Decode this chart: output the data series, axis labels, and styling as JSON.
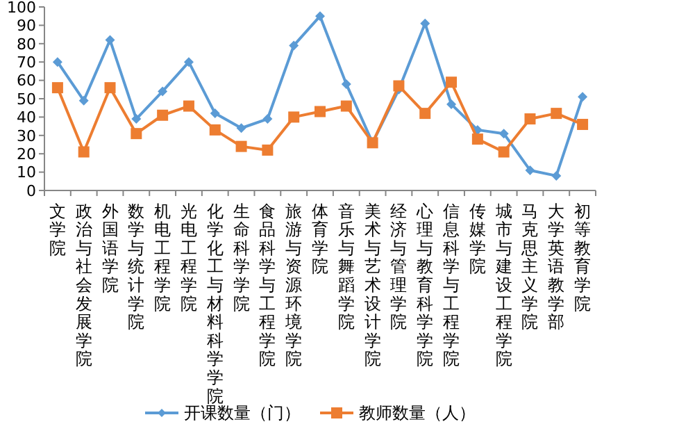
{
  "chart_data": {
    "type": "line",
    "categories": [
      "文学院",
      "政治与社会发展学院",
      "外国语学院",
      "数学与统计学院",
      "机电工程学院",
      "光电工程学院",
      "化学化工与材料科学学院",
      "生命科学学院",
      "食品科学与工程学院",
      "旅游与资源环境学院",
      "体育学院",
      "音乐与舞蹈学院",
      "美术与艺术设计学院",
      "经济与管理学院",
      "心理与教育科学学院",
      "信息科学与工程学院",
      "传媒学院",
      "城市与建设工程学院",
      "马克思主义学院",
      "大学英语教学部",
      "初等教育学院"
    ],
    "series": [
      {
        "name": "开课数量（门）",
        "color": "#5b9bd5",
        "marker": "diamond",
        "values": [
          70,
          49,
          82,
          39,
          54,
          70,
          42,
          34,
          39,
          79,
          95,
          58,
          26,
          55,
          91,
          47,
          33,
          31,
          11,
          8,
          51
        ]
      },
      {
        "name": "教师数量（人）",
        "color": "#ed7d31",
        "marker": "square",
        "values": [
          56,
          21,
          56,
          31,
          41,
          46,
          33,
          24,
          22,
          40,
          43,
          46,
          26,
          57,
          42,
          59,
          28,
          21,
          39,
          42,
          36
        ]
      }
    ],
    "ylim": [
      0,
      100
    ],
    "yticks": [
      0,
      10,
      20,
      30,
      40,
      50,
      60,
      70,
      80,
      90,
      100
    ],
    "grid": false,
    "legend": "bottom",
    "line_style": "solid"
  }
}
